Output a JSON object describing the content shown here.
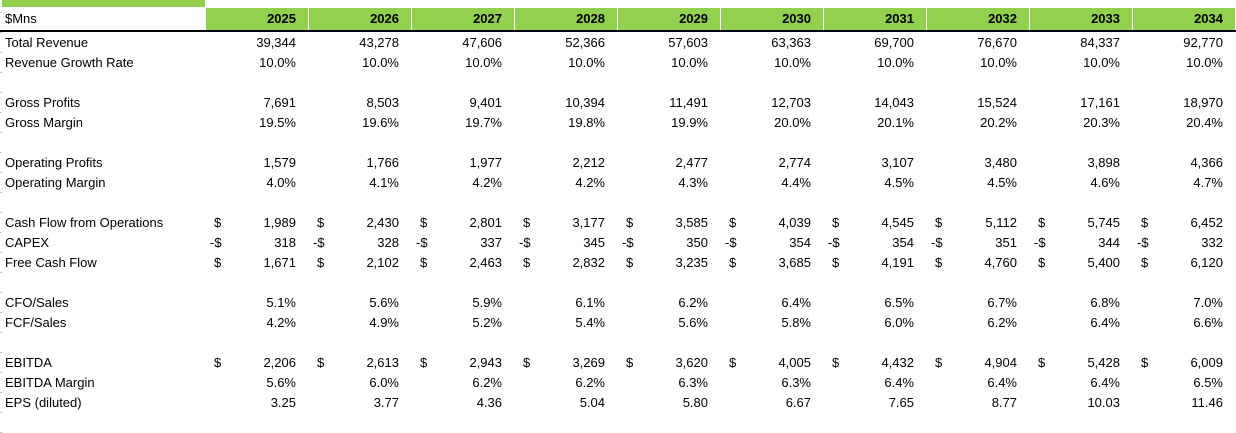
{
  "colors": {
    "header_green": "#92D050",
    "border_black": "#000000",
    "gridline_gray": "#c9c9c9"
  },
  "header": {
    "unit_label": "$Mns",
    "years": [
      "2025",
      "2026",
      "2027",
      "2028",
      "2029",
      "2030",
      "2031",
      "2032",
      "2033",
      "2034"
    ]
  },
  "table": {
    "rows": [
      {
        "label": "Total Revenue",
        "prefix": "",
        "values": [
          "39,344",
          "43,278",
          "47,606",
          "52,366",
          "57,603",
          "63,363",
          "69,700",
          "76,670",
          "84,337",
          "92,770"
        ]
      },
      {
        "label": "Revenue Growth Rate",
        "prefix": "",
        "values": [
          "10.0%",
          "10.0%",
          "10.0%",
          "10.0%",
          "10.0%",
          "10.0%",
          "10.0%",
          "10.0%",
          "10.0%",
          "10.0%"
        ]
      },
      {
        "label": "",
        "prefix": "",
        "values": []
      },
      {
        "label": "Gross Profits",
        "prefix": "",
        "values": [
          "7,691",
          "8,503",
          "9,401",
          "10,394",
          "11,491",
          "12,703",
          "14,043",
          "15,524",
          "17,161",
          "18,970"
        ]
      },
      {
        "label": "Gross Margin",
        "prefix": "",
        "values": [
          "19.5%",
          "19.6%",
          "19.7%",
          "19.8%",
          "19.9%",
          "20.0%",
          "20.1%",
          "20.2%",
          "20.3%",
          "20.4%"
        ]
      },
      {
        "label": "",
        "prefix": "",
        "values": []
      },
      {
        "label": "Operating Profits",
        "prefix": "",
        "values": [
          "1,579",
          "1,766",
          "1,977",
          "2,212",
          "2,477",
          "2,774",
          "3,107",
          "3,480",
          "3,898",
          "4,366"
        ]
      },
      {
        "label": "Operating Margin",
        "prefix": "",
        "values": [
          "4.0%",
          "4.1%",
          "4.2%",
          "4.2%",
          "4.3%",
          "4.4%",
          "4.5%",
          "4.5%",
          "4.6%",
          "4.7%"
        ]
      },
      {
        "label": "",
        "prefix": "",
        "values": []
      },
      {
        "label": "Cash Flow from Operations",
        "prefix": "$",
        "values": [
          "1,989",
          "2,430",
          "2,801",
          "3,177",
          "3,585",
          "4,039",
          "4,545",
          "5,112",
          "5,745",
          "6,452"
        ]
      },
      {
        "label": "CAPEX",
        "prefix": "-$",
        "values": [
          "318",
          "328",
          "337",
          "345",
          "350",
          "354",
          "354",
          "351",
          "344",
          "332"
        ]
      },
      {
        "label": "Free Cash Flow",
        "prefix": "$",
        "values": [
          "1,671",
          "2,102",
          "2,463",
          "2,832",
          "3,235",
          "3,685",
          "4,191",
          "4,760",
          "5,400",
          "6,120"
        ]
      },
      {
        "label": "",
        "prefix": "",
        "values": []
      },
      {
        "label": "CFO/Sales",
        "prefix": "",
        "values": [
          "5.1%",
          "5.6%",
          "5.9%",
          "6.1%",
          "6.2%",
          "6.4%",
          "6.5%",
          "6.7%",
          "6.8%",
          "7.0%"
        ]
      },
      {
        "label": "FCF/Sales",
        "prefix": "",
        "values": [
          "4.2%",
          "4.9%",
          "5.2%",
          "5.4%",
          "5.6%",
          "5.8%",
          "6.0%",
          "6.2%",
          "6.4%",
          "6.6%"
        ]
      },
      {
        "label": "",
        "prefix": "",
        "values": []
      },
      {
        "label": "EBITDA",
        "prefix": "$",
        "values": [
          "2,206",
          "2,613",
          "2,943",
          "3,269",
          "3,620",
          "4,005",
          "4,432",
          "4,904",
          "5,428",
          "6,009"
        ]
      },
      {
        "label": "EBITDA Margin",
        "prefix": "",
        "values": [
          "5.6%",
          "6.0%",
          "6.2%",
          "6.2%",
          "6.3%",
          "6.3%",
          "6.4%",
          "6.4%",
          "6.4%",
          "6.5%"
        ]
      },
      {
        "label": "EPS (diluted)",
        "prefix": "",
        "values": [
          "3.25",
          "3.77",
          "4.36",
          "5.04",
          "5.80",
          "6.67",
          "7.65",
          "8.77",
          "10.03",
          "11.46"
        ]
      },
      {
        "label": "",
        "prefix": "",
        "values": []
      }
    ]
  }
}
